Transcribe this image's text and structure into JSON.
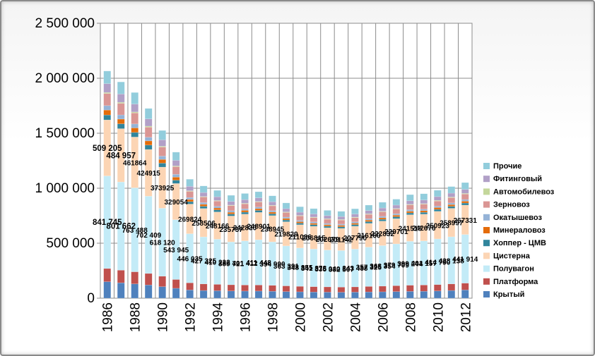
{
  "chart_data": {
    "type": "bar",
    "stacked": true,
    "title": "",
    "xlabel": "",
    "ylabel": "",
    "ylim": [
      0,
      2500000
    ],
    "yticks": [
      "0",
      "500 000",
      "1 000 000",
      "1 500 000",
      "2 000 000",
      "2 500 000"
    ],
    "ytick_values": [
      0,
      500000,
      1000000,
      1500000,
      2000000,
      2500000
    ],
    "grid": true,
    "legend_position": "right",
    "categories": [
      "1986",
      "1987",
      "1988",
      "1989",
      "1990",
      "1991",
      "1992",
      "1993",
      "1994",
      "1995",
      "1996",
      "1997",
      "1998",
      "1999",
      "2000",
      "2001",
      "2002",
      "2003",
      "2004",
      "2005",
      "2006",
      "2007",
      "2008",
      "2009",
      "2010",
      "2011",
      "2012"
    ],
    "xtick_labels": [
      "1986",
      "",
      "1988",
      "",
      "1990",
      "",
      "1992",
      "",
      "1994",
      "",
      "1996",
      "",
      "1998",
      "",
      "2000",
      "",
      "2002",
      "",
      "2004",
      "",
      "2006",
      "",
      "2008",
      "",
      "2010",
      "",
      "2012"
    ],
    "series": [
      {
        "name": "Крытый",
        "color": "#4f81bd",
        "values": [
          150000,
          140000,
          130000,
          120000,
          105000,
          90000,
          75000,
          70000,
          68000,
          66000,
          65000,
          65000,
          63000,
          60000,
          58000,
          56000,
          55000,
          54000,
          55000,
          57000,
          58000,
          60000,
          62000,
          63000,
          66000,
          70000,
          75000
        ]
      },
      {
        "name": "Платформа",
        "color": "#c0504d",
        "values": [
          120000,
          115000,
          110000,
          105000,
          95000,
          80000,
          65000,
          60000,
          58000,
          56000,
          55000,
          55000,
          54000,
          52000,
          50000,
          49000,
          48000,
          47000,
          48000,
          50000,
          52000,
          54000,
          56000,
          57000,
          58000,
          60000,
          62000
        ]
      },
      {
        "name": "Полувагон",
        "color": "#c3ebf7",
        "values": [
          841745,
          801662,
          763488,
          702409,
          618120,
          543945,
          446035,
          427325,
          410232,
          389721,
          401412,
          411448,
          394990,
          363391,
          348855,
          341878,
          335040,
          332507,
          343488,
          357325,
          368354,
          379709,
          399244,
          401157,
          414790,
          428138,
          441914
        ],
        "labels": [
          "841 745",
          "801 662",
          "763 488",
          "702 409",
          "618 120",
          "543 945",
          "446 035",
          "427 325",
          "410 232",
          "389 721",
          "401 412",
          "411 448",
          "394 990",
          "363 391",
          "348 855",
          "341 878",
          "335 040",
          "332 507",
          "343 488",
          "357 325",
          "368 354",
          "379 709",
          "399 244",
          "401 157",
          "414 790",
          "428 138",
          "441 914"
        ]
      },
      {
        "name": "Цистерна",
        "color": "#fcd5b4",
        "values": [
          509205,
          484957,
          461864,
          424915,
          373925,
          329054,
          269824,
          258506,
          248166,
          235757,
          242830,
          248901,
          238945,
          219829,
          211036,
          206815,
          202679,
          201142,
          207790,
          216160,
          222832,
          229701,
          241518,
          242676,
          250923,
          258997,
          267331
        ],
        "labels": [
          "509 205",
          "484 957",
          "461864",
          "424915",
          "373925",
          "329054",
          "269824",
          "258506",
          "248166",
          "235757",
          "242830",
          "248901",
          "238945",
          "219829",
          "211036",
          "206815",
          "202679",
          "201142",
          "207790",
          "216160",
          "222832",
          "229701",
          "241518",
          "242676",
          "250923",
          "258997",
          "267331"
        ]
      },
      {
        "name": "Хоппер - ЦМВ",
        "color": "#31859c",
        "values": [
          45000,
          44000,
          42000,
          40000,
          36000,
          30000,
          22000,
          20000,
          19000,
          18000,
          18000,
          18000,
          17000,
          16000,
          15000,
          15000,
          15000,
          15000,
          15000,
          16000,
          16000,
          17000,
          17000,
          17000,
          18000,
          18000,
          19000
        ]
      },
      {
        "name": "Минераловоз",
        "color": "#e46c0a",
        "values": [
          45000,
          43000,
          41000,
          38000,
          34000,
          28000,
          20000,
          18000,
          17000,
          16000,
          16000,
          16000,
          15000,
          14000,
          13000,
          13000,
          13000,
          13000,
          13000,
          14000,
          14000,
          15000,
          15000,
          15000,
          16000,
          16000,
          17000
        ]
      },
      {
        "name": "Окатышевоз",
        "color": "#95b3d7",
        "values": [
          40000,
          38000,
          36000,
          33000,
          30000,
          25000,
          18000,
          16000,
          15000,
          14000,
          14000,
          14000,
          13000,
          12000,
          12000,
          12000,
          11000,
          11000,
          12000,
          12000,
          13000,
          13000,
          14000,
          14000,
          14000,
          15000,
          15000
        ]
      },
      {
        "name": "Зерновоз",
        "color": "#da9694",
        "values": [
          110000,
          105000,
          100000,
          92000,
          82000,
          70000,
          55000,
          50000,
          48000,
          46000,
          46000,
          46000,
          44000,
          42000,
          40000,
          39000,
          38000,
          37000,
          38000,
          40000,
          41000,
          42000,
          44000,
          45000,
          46000,
          48000,
          50000
        ]
      },
      {
        "name": "Автомобилевоз",
        "color": "#c4d79b",
        "values": [
          10000,
          10000,
          9000,
          9000,
          8000,
          7000,
          6000,
          5000,
          5000,
          5000,
          5000,
          5000,
          5000,
          5000,
          5000,
          5000,
          5000,
          5000,
          5000,
          5000,
          5000,
          5000,
          5000,
          5000,
          6000,
          6000,
          6000
        ]
      },
      {
        "name": "Фитинговый",
        "color": "#b1a0c7",
        "values": [
          80000,
          75000,
          72000,
          66000,
          58000,
          50000,
          40000,
          36000,
          34000,
          33000,
          33000,
          33000,
          32000,
          30000,
          29000,
          28000,
          28000,
          27000,
          28000,
          29000,
          30000,
          31000,
          32000,
          33000,
          34000,
          35000,
          36000
        ]
      },
      {
        "name": "Прочие",
        "color": "#92cddc",
        "values": [
          115000,
          110000,
          105000,
          95000,
          85000,
          75000,
          65000,
          60000,
          58000,
          56000,
          56000,
          56000,
          54000,
          52000,
          50000,
          49000,
          48000,
          47000,
          48000,
          50000,
          52000,
          54000,
          56000,
          57000,
          58000,
          60000,
          62000
        ]
      }
    ],
    "legend_order": [
      "Прочие",
      "Фитинговый",
      "Автомобилевоз",
      "Зерновоз",
      "Окатышевоз",
      "Минераловоз",
      "Хоппер - ЦМВ",
      "Цистерна",
      "Полувагон",
      "Платформа",
      "Крытый"
    ]
  }
}
